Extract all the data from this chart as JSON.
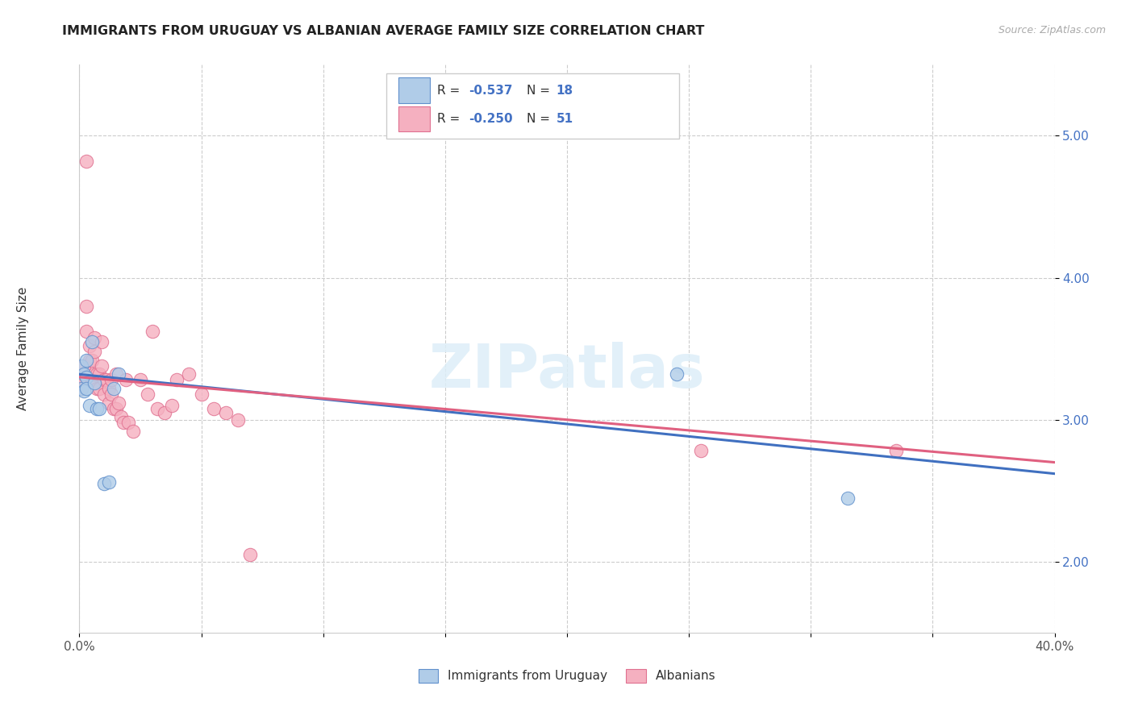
{
  "title": "IMMIGRANTS FROM URUGUAY VS ALBANIAN AVERAGE FAMILY SIZE CORRELATION CHART",
  "source": "Source: ZipAtlas.com",
  "ylabel": "Average Family Size",
  "yticks": [
    2.0,
    3.0,
    4.0,
    5.0
  ],
  "xlim": [
    0.0,
    0.4
  ],
  "ylim": [
    1.5,
    5.5
  ],
  "legend1_label_r": "R = ",
  "legend1_val": "-0.537",
  "legend1_n": "   N = ",
  "legend1_nval": "18",
  "legend2_val": "-0.250",
  "legend2_nval": "51",
  "legend_bottom1": "Immigrants from Uruguay",
  "legend_bottom2": "Albanians",
  "watermark": "ZIPatlas",
  "uruguay_color": "#b0cce8",
  "albanian_color": "#f5b0c0",
  "uruguay_edge_color": "#6090cc",
  "albanian_edge_color": "#e07090",
  "uruguay_line_color": "#4070c0",
  "albanian_line_color": "#e06080",
  "uruguay_x": [
    0.001,
    0.001,
    0.002,
    0.002,
    0.003,
    0.003,
    0.003,
    0.004,
    0.005,
    0.006,
    0.007,
    0.008,
    0.01,
    0.012,
    0.014,
    0.016,
    0.245,
    0.315
  ],
  "uruguay_y": [
    3.38,
    3.22,
    3.32,
    3.2,
    3.42,
    3.3,
    3.22,
    3.1,
    3.55,
    3.26,
    3.08,
    3.08,
    2.55,
    2.56,
    3.22,
    3.32,
    3.32,
    2.45
  ],
  "albanian_x": [
    0.001,
    0.001,
    0.002,
    0.002,
    0.003,
    0.003,
    0.003,
    0.004,
    0.004,
    0.005,
    0.005,
    0.006,
    0.006,
    0.006,
    0.007,
    0.007,
    0.008,
    0.008,
    0.009,
    0.009,
    0.01,
    0.01,
    0.011,
    0.012,
    0.012,
    0.013,
    0.013,
    0.014,
    0.015,
    0.015,
    0.016,
    0.017,
    0.018,
    0.019,
    0.02,
    0.022,
    0.025,
    0.028,
    0.03,
    0.032,
    0.035,
    0.038,
    0.04,
    0.045,
    0.05,
    0.055,
    0.06,
    0.065,
    0.07,
    0.255,
    0.335
  ],
  "albanian_y": [
    3.22,
    3.32,
    3.28,
    3.38,
    4.82,
    3.8,
    3.62,
    3.52,
    3.42,
    3.42,
    3.28,
    3.58,
    3.48,
    3.32,
    3.32,
    3.22,
    3.32,
    3.22,
    3.55,
    3.38,
    3.28,
    3.18,
    3.28,
    3.22,
    3.12,
    3.28,
    3.18,
    3.08,
    3.32,
    3.08,
    3.12,
    3.02,
    2.98,
    3.28,
    2.98,
    2.92,
    3.28,
    3.18,
    3.62,
    3.08,
    3.05,
    3.1,
    3.28,
    3.32,
    3.18,
    3.08,
    3.05,
    3.0,
    2.05,
    2.78,
    2.78
  ],
  "trend_ury_x0": 0.0,
  "trend_ury_y0": 3.32,
  "trend_ury_x1": 0.4,
  "trend_ury_y1": 2.62,
  "trend_alb_x0": 0.0,
  "trend_alb_y0": 3.3,
  "trend_alb_x1": 0.4,
  "trend_alb_y1": 2.7
}
